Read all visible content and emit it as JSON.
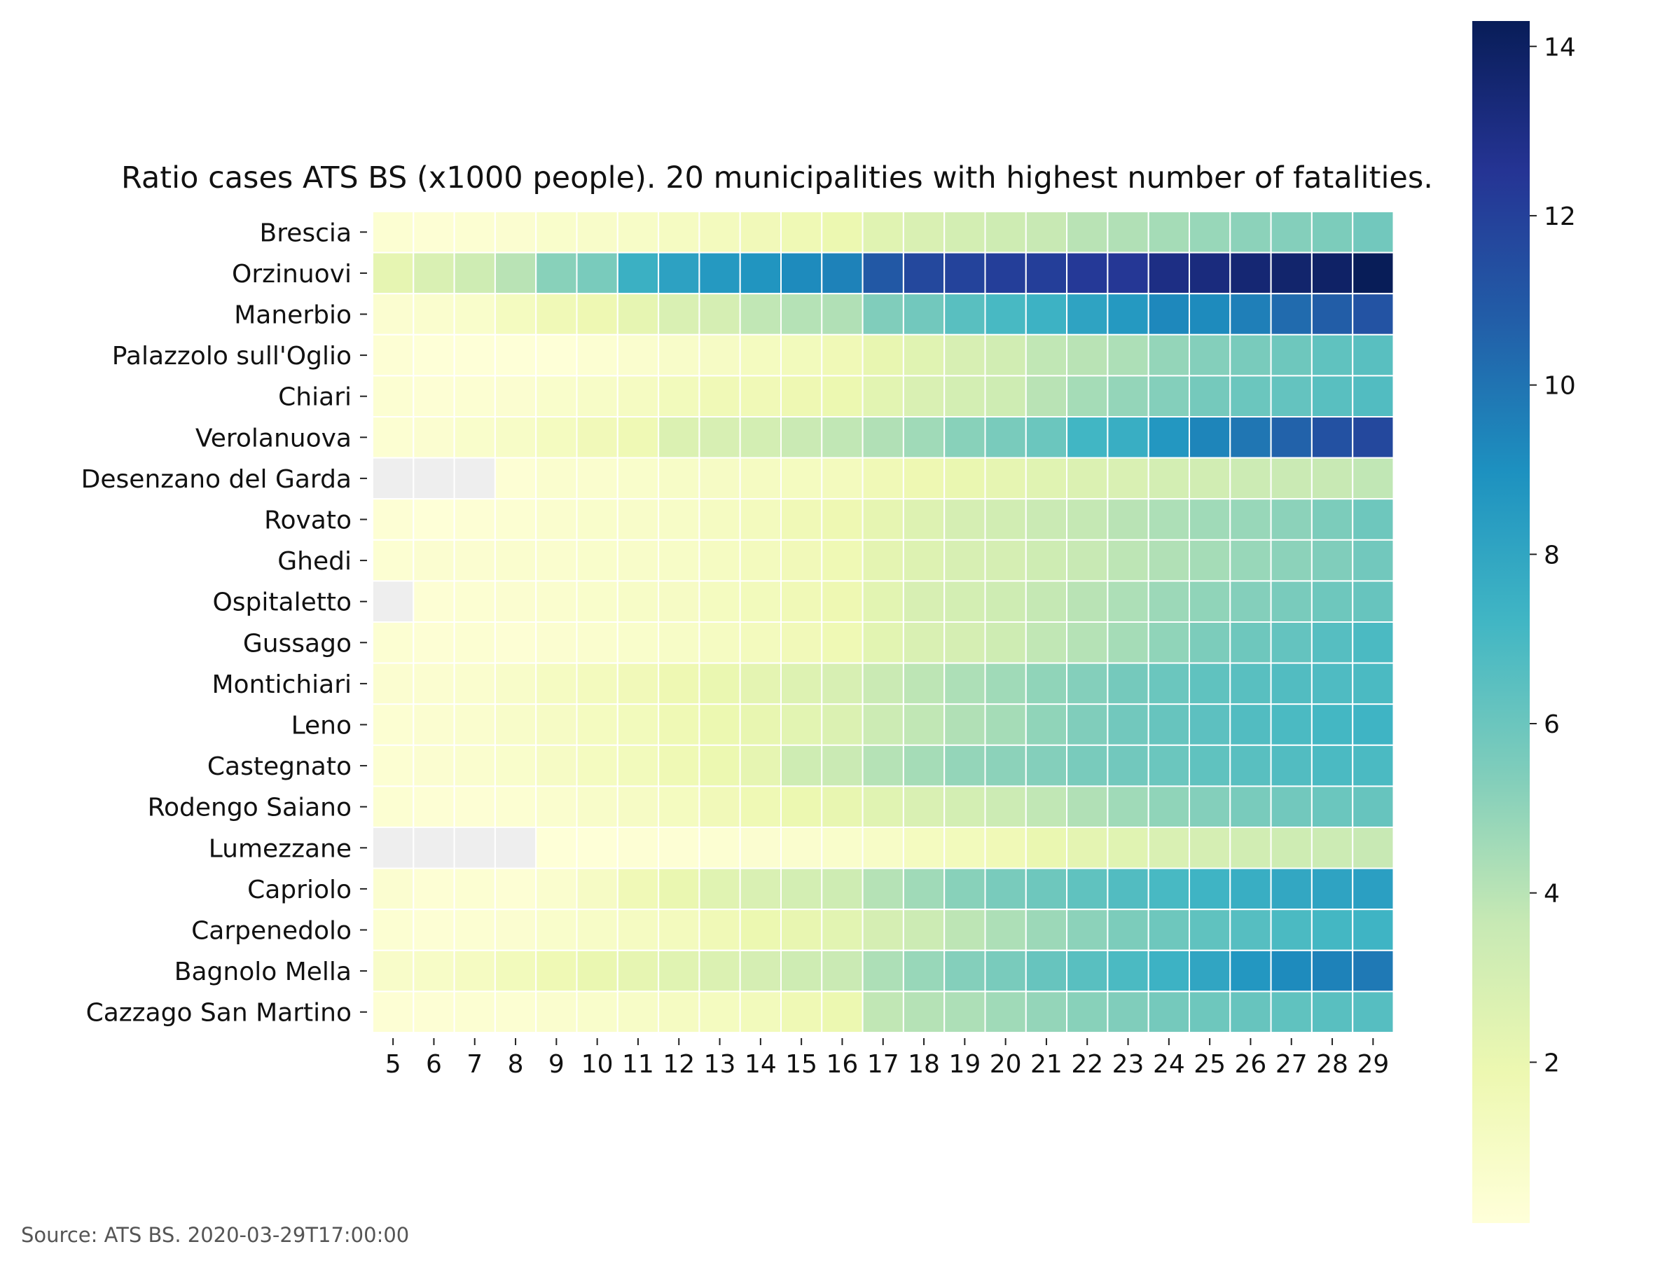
{
  "chart_data": {
    "type": "heatmap",
    "title": "Ratio cases ATS BS (x1000 people). 20 municipalities with highest number of fatalities.",
    "xlabel": "",
    "ylabel": "",
    "x": [
      5,
      6,
      7,
      8,
      9,
      10,
      11,
      12,
      13,
      14,
      15,
      16,
      17,
      18,
      19,
      20,
      21,
      22,
      23,
      24,
      25,
      26,
      27,
      28,
      29
    ],
    "rows": [
      "Brescia",
      "Orzinuovi",
      "Manerbio",
      "Palazzolo sull'Oglio",
      "Chiari",
      "Verolanuova",
      "Desenzano del Garda",
      "Rovato",
      "Ghedi",
      "Ospitaletto",
      "Gussago",
      "Montichiari",
      "Leno",
      "Castegnato",
      "Rodengo Saiano",
      "Lumezzane",
      "Capriolo",
      "Carpenedolo",
      "Bagnolo Mella",
      "Cazzago San Martino"
    ],
    "values": [
      [
        0.4,
        0.3,
        0.4,
        0.5,
        0.7,
        0.8,
        0.9,
        1.1,
        1.3,
        1.5,
        1.7,
        1.9,
        2.5,
        2.8,
        3.1,
        3.3,
        3.6,
        4.0,
        4.2,
        4.5,
        4.8,
        5.1,
        5.3,
        5.5,
        5.8
      ],
      [
        2.2,
        2.8,
        3.3,
        4.0,
        5.2,
        5.6,
        7.5,
        8.2,
        8.6,
        8.8,
        9.2,
        9.5,
        11.0,
        11.7,
        11.9,
        12.1,
        12.1,
        12.3,
        12.4,
        13.0,
        13.2,
        13.5,
        13.7,
        13.9,
        14.3
      ],
      [
        0.5,
        0.6,
        0.7,
        1.2,
        1.6,
        1.8,
        2.2,
        2.8,
        3.0,
        3.8,
        4.1,
        4.2,
        5.4,
        5.8,
        6.5,
        7.0,
        7.4,
        8.1,
        8.6,
        9.3,
        9.2,
        9.6,
        10.3,
        10.8,
        11.2
      ],
      [
        0.3,
        0.2,
        0.2,
        0.2,
        0.2,
        0.4,
        0.6,
        0.8,
        1.0,
        1.2,
        1.4,
        1.6,
        2.1,
        2.5,
        2.9,
        3.2,
        3.8,
        4.0,
        4.3,
        4.9,
        5.3,
        5.6,
        5.9,
        6.3,
        6.5
      ],
      [
        0.4,
        0.3,
        0.4,
        0.5,
        0.7,
        0.9,
        1.1,
        1.4,
        1.6,
        1.6,
        1.8,
        1.9,
        2.4,
        2.8,
        3.1,
        3.3,
        4.0,
        4.5,
        4.9,
        5.3,
        5.7,
        6.0,
        6.2,
        6.5,
        6.7
      ],
      [
        0.4,
        0.5,
        0.7,
        0.9,
        1.2,
        1.5,
        1.7,
        2.7,
        2.9,
        3.1,
        3.5,
        3.8,
        4.2,
        4.6,
        5.2,
        5.6,
        6.0,
        7.2,
        7.6,
        8.7,
        9.4,
        9.9,
        10.6,
        11.3,
        11.7
      ],
      [
        null,
        null,
        null,
        0.3,
        0.6,
        0.6,
        0.7,
        0.9,
        1.0,
        1.1,
        1.2,
        1.3,
        1.6,
        1.8,
        2.0,
        2.2,
        2.5,
        2.7,
        2.8,
        3.1,
        3.2,
        3.4,
        3.5,
        3.6,
        3.8
      ],
      [
        0.3,
        0.2,
        0.3,
        0.4,
        0.6,
        0.7,
        0.8,
        0.9,
        1.1,
        1.3,
        1.6,
        1.8,
        2.2,
        2.6,
        3.0,
        3.2,
        3.5,
        3.7,
        4.0,
        4.3,
        4.6,
        4.8,
        5.1,
        5.5,
        5.9
      ],
      [
        0.4,
        0.5,
        0.5,
        0.6,
        0.6,
        0.7,
        0.8,
        0.9,
        1.1,
        1.3,
        1.5,
        1.7,
        2.3,
        2.6,
        2.9,
        3.0,
        3.3,
        3.6,
        3.9,
        4.2,
        4.5,
        4.8,
        5.1,
        5.4,
        5.8
      ],
      [
        null,
        0.3,
        0.4,
        0.5,
        0.6,
        0.7,
        0.9,
        1.0,
        1.2,
        1.4,
        1.6,
        1.8,
        2.4,
        2.9,
        3.1,
        3.3,
        3.7,
        4.0,
        4.3,
        4.7,
        5.0,
        5.3,
        5.6,
        5.9,
        6.1
      ],
      [
        0.4,
        0.3,
        0.4,
        0.3,
        0.5,
        0.6,
        0.7,
        0.9,
        1.1,
        1.3,
        1.5,
        1.7,
        2.4,
        2.8,
        3.0,
        3.3,
        3.8,
        4.1,
        4.5,
        5.0,
        5.5,
        5.9,
        6.2,
        6.6,
        6.9
      ],
      [
        0.5,
        0.5,
        0.6,
        0.8,
        1.1,
        1.3,
        1.5,
        1.8,
        2.0,
        2.3,
        2.6,
        2.9,
        3.5,
        3.9,
        4.3,
        4.6,
        5.0,
        5.3,
        5.7,
        6.0,
        6.3,
        6.5,
        6.7,
        6.8,
        6.9
      ],
      [
        0.4,
        0.5,
        0.6,
        0.8,
        1.0,
        1.2,
        1.4,
        1.7,
        1.9,
        2.1,
        2.4,
        2.7,
        3.4,
        3.8,
        4.2,
        4.5,
        5.0,
        5.4,
        5.8,
        6.1,
        6.4,
        6.7,
        6.9,
        7.1,
        7.3
      ],
      [
        0.4,
        0.5,
        0.6,
        0.7,
        1.0,
        1.2,
        1.4,
        1.7,
        1.9,
        2.2,
        3.3,
        3.5,
        4.1,
        4.5,
        4.9,
        5.1,
        5.3,
        5.6,
        5.8,
        6.0,
        6.3,
        6.5,
        6.7,
        6.9,
        6.9
      ],
      [
        0.4,
        0.3,
        0.3,
        0.4,
        0.6,
        0.8,
        1.0,
        1.2,
        1.5,
        1.7,
        1.9,
        2.1,
        2.5,
        2.8,
        3.1,
        3.4,
        3.8,
        4.2,
        4.6,
        5.0,
        5.3,
        5.6,
        5.8,
        6.0,
        6.1
      ],
      [
        null,
        null,
        null,
        null,
        0.2,
        0.2,
        0.3,
        0.3,
        0.4,
        0.5,
        0.6,
        0.7,
        0.9,
        1.2,
        1.4,
        1.6,
        2.0,
        2.3,
        2.5,
        2.8,
        3.0,
        3.2,
        3.3,
        3.4,
        3.6
      ],
      [
        0.5,
        0.3,
        0.4,
        0.3,
        0.6,
        1.0,
        1.6,
        2.0,
        2.5,
        2.8,
        3.1,
        3.3,
        4.1,
        4.6,
        5.2,
        5.6,
        5.9,
        6.3,
        6.7,
        7.0,
        7.3,
        7.6,
        7.9,
        8.1,
        8.3
      ],
      [
        0.4,
        0.3,
        0.4,
        0.5,
        0.7,
        0.9,
        1.1,
        1.3,
        1.6,
        1.9,
        2.1,
        2.4,
        3.0,
        3.4,
        3.9,
        4.3,
        4.7,
        5.1,
        5.5,
        5.9,
        6.3,
        6.6,
        6.9,
        7.1,
        7.3
      ],
      [
        0.8,
        0.9,
        1.1,
        1.4,
        1.7,
        2.0,
        2.2,
        2.5,
        2.7,
        3.0,
        3.3,
        3.5,
        4.3,
        4.8,
        5.3,
        5.6,
        6.1,
        6.5,
        6.9,
        7.4,
        8.0,
        8.7,
        9.2,
        9.5,
        9.8
      ],
      [
        0.3,
        0.3,
        0.4,
        0.4,
        0.6,
        0.7,
        0.9,
        1.1,
        1.2,
        1.4,
        1.7,
        1.9,
        3.8,
        4.1,
        4.3,
        4.6,
        4.9,
        5.2,
        5.4,
        5.7,
        5.9,
        6.1,
        6.3,
        6.5,
        6.6
      ]
    ],
    "colorbar": {
      "colormap": "YlGnBu",
      "range": [
        0.1,
        14.3
      ],
      "ticks": [
        2,
        4,
        6,
        8,
        10,
        12,
        14
      ]
    },
    "missing_color": "#eeeeee",
    "grid": false,
    "legend": "colorbar at right"
  },
  "footer": {
    "source": "Source: ATS BS. 2020-03-29T17:00:00"
  }
}
